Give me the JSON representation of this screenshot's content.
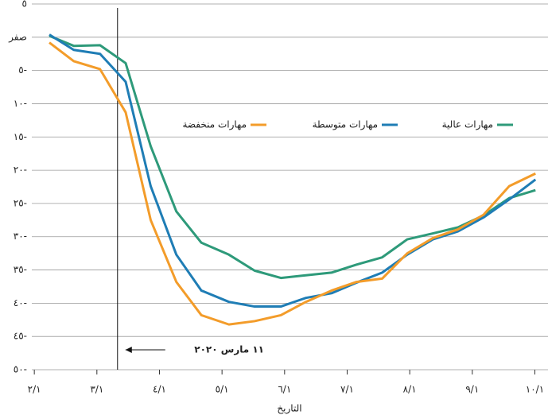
{
  "chart_data": {
    "type": "line",
    "x_label": "التاريخ",
    "xlim": [
      1.96,
      10.21
    ],
    "xticks": [
      {
        "value": 2,
        "label": "٢/١"
      },
      {
        "value": 3,
        "label": "٣/١"
      },
      {
        "value": 4,
        "label": "٤/١"
      },
      {
        "value": 5,
        "label": "٥/١"
      },
      {
        "value": 6,
        "label": "٦/١"
      },
      {
        "value": 7,
        "label": "٧/١"
      },
      {
        "value": 8,
        "label": "٨/١"
      },
      {
        "value": 9,
        "label": "٩/١"
      },
      {
        "value": 10,
        "label": "١٠/١"
      }
    ],
    "ylim": [
      -50,
      5
    ],
    "yticks": [
      {
        "value": 5,
        "label": "٥"
      },
      {
        "value": 0,
        "label": "صفر"
      },
      {
        "value": -5,
        "label": "٥-"
      },
      {
        "value": -10,
        "label": "١٠-"
      },
      {
        "value": -15,
        "label": "١٥-"
      },
      {
        "value": -20,
        "label": "٢٠-"
      },
      {
        "value": -25,
        "label": "٢٥-"
      },
      {
        "value": -30,
        "label": "٣٠-"
      },
      {
        "value": -35,
        "label": "٣٥-"
      },
      {
        "value": -40,
        "label": "٤٠-"
      },
      {
        "value": -45,
        "label": "٤٥-"
      },
      {
        "value": -50,
        "label": "٥٠-"
      }
    ],
    "grid": true,
    "x": [
      2.24,
      2.63,
      3.05,
      3.46,
      3.86,
      4.27,
      4.67,
      5.11,
      5.52,
      5.94,
      6.34,
      6.75,
      7.15,
      7.56,
      7.96,
      8.37,
      8.77,
      9.18,
      9.59,
      10.01
    ],
    "series": [
      {
        "name": "مهارات عالية",
        "color": "#2e9a7a",
        "values": [
          0.2,
          -1.3,
          -1.2,
          -3.9,
          -16.4,
          -26.2,
          -30.9,
          -32.7,
          -35.1,
          -36.2,
          -35.8,
          -35.4,
          -34.2,
          -33.1,
          -30.4,
          -29.5,
          -28.6,
          -26.8,
          -24.2,
          -23.0
        ]
      },
      {
        "name": "مهارات متوسطة",
        "color": "#1f7db5",
        "values": [
          0.4,
          -1.9,
          -2.5,
          -6.7,
          -22.4,
          -32.7,
          -38.1,
          -39.8,
          -40.5,
          -40.5,
          -39.2,
          -38.5,
          -36.9,
          -35.4,
          -32.7,
          -30.4,
          -29.2,
          -27.1,
          -24.4,
          -21.4
        ]
      },
      {
        "name": "مهارات منخفضة",
        "color": "#f39c2a",
        "values": [
          -0.8,
          -3.6,
          -4.8,
          -11.3,
          -27.5,
          -36.8,
          -41.8,
          -43.2,
          -42.7,
          -41.8,
          -39.8,
          -38.1,
          -36.8,
          -36.3,
          -32.5,
          -30.2,
          -28.9,
          -26.7,
          -22.4,
          -20.5
        ]
      }
    ],
    "annotation": {
      "x": 3.33,
      "label": "١١ مارس ٢٠٢٠"
    }
  }
}
